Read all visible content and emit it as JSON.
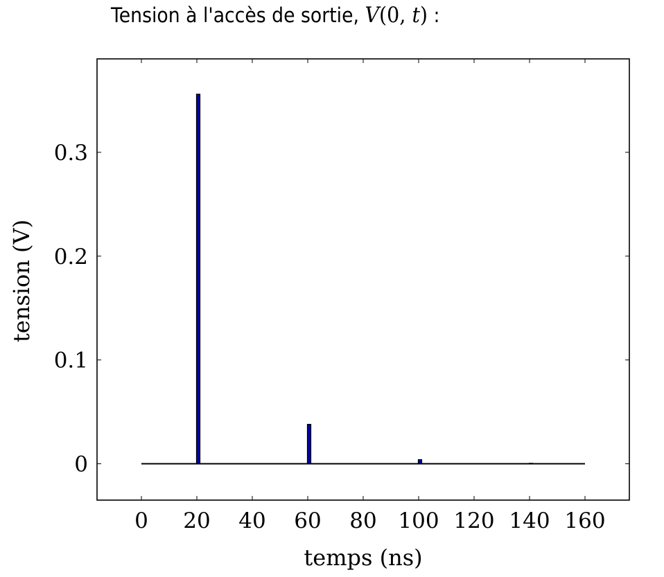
{
  "title": {
    "text": "Tension à l'accès de sortie,",
    "math_func": "V",
    "math_args": "(0, ",
    "math_var": "t",
    "math_close": ")",
    "suffix": " :"
  },
  "chart_data": {
    "type": "bar",
    "xlabel": "temps (ns)",
    "ylabel": "tension (V)",
    "xlim": [
      -16,
      176
    ],
    "ylim": [
      -0.035,
      0.39
    ],
    "xticks": [
      0,
      20,
      40,
      60,
      80,
      100,
      120,
      140,
      160
    ],
    "yticks": [
      0,
      0.1,
      0.2,
      0.3
    ],
    "ytick_labels": [
      "0",
      "0.1",
      "0.2",
      "0.3"
    ],
    "x": [
      20.5,
      60.5,
      100.5,
      140.5
    ],
    "values": [
      0.356,
      0.038,
      0.004,
      0.0005
    ],
    "baseline": {
      "x_range": [
        0,
        160
      ],
      "value": 0
    },
    "bar_color": "#0000aa",
    "grid": false,
    "legend": "none"
  }
}
